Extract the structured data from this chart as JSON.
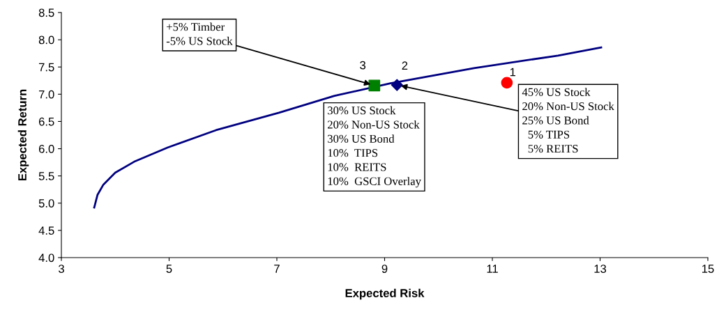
{
  "chart_data": {
    "type": "line",
    "xlabel": "Expected Risk",
    "ylabel": "Expected Return",
    "xlim": [
      3,
      15
    ],
    "xticks": [
      3,
      5,
      7,
      9,
      11,
      13,
      15
    ],
    "ylim": [
      4.0,
      8.5
    ],
    "yticks": [
      {
        "value": 4.0,
        "label": "4.0"
      },
      {
        "value": 4.5,
        "label": "4.5"
      },
      {
        "value": 5.0,
        "label": "5.0"
      },
      {
        "value": 5.5,
        "label": "5.5"
      },
      {
        "value": 6.0,
        "label": "6.0"
      },
      {
        "value": 6.5,
        "label": "6.5"
      },
      {
        "value": 7.0,
        "label": "7.0"
      },
      {
        "value": 7.5,
        "label": "7.5"
      },
      {
        "value": 8.0,
        "label": "8.0"
      },
      {
        "value": 8.5,
        "label": "8.5"
      }
    ],
    "grid": false,
    "series": [
      {
        "color": "#000080",
        "marker": "none",
        "x": [
          3.61,
          3.67,
          3.78,
          4.0,
          4.35,
          4.97,
          5.87,
          7.04,
          8.07,
          9.11,
          10.66,
          12.22,
          13.02
        ],
        "values": [
          4.92,
          5.15,
          5.34,
          5.56,
          5.76,
          6.02,
          6.34,
          6.66,
          6.97,
          7.2,
          7.48,
          7.71,
          7.86
        ]
      },
      {
        "type": "scatter",
        "color": "#ff0000",
        "marker": "circle",
        "x": [
          11.27
        ],
        "values": [
          7.21
        ]
      },
      {
        "type": "scatter",
        "color": "#000080",
        "marker": "diamond",
        "x": [
          9.23
        ],
        "values": [
          7.17
        ]
      },
      {
        "type": "scatter",
        "color": "#008000",
        "marker": "square",
        "x": [
          8.81
        ],
        "values": [
          7.16
        ]
      }
    ],
    "annotations": [
      {
        "text": "1",
        "x": 11.27,
        "y": 7.21
      },
      {
        "text": "2",
        "x": 9.23,
        "y": 7.17
      },
      {
        "text": "3",
        "x": 8.81,
        "y": 7.16
      },
      {
        "text": "+5% Timber\n-5% US Stock",
        "x": 8.81,
        "y": 7.16
      },
      {
        "text": "30% US Stock\n20% Non-US Stock\n30% US Bond\n10%  TIPS\n10%  REITS\n10%  GSCI Overlay",
        "x": 9.23,
        "y": 7.17
      },
      {
        "text": "45% US Stock\n20% Non-US Stock\n25% US Bond\n  5% TIPS\n  5% REITS",
        "x": 9.23,
        "y": 7.17
      }
    ]
  }
}
